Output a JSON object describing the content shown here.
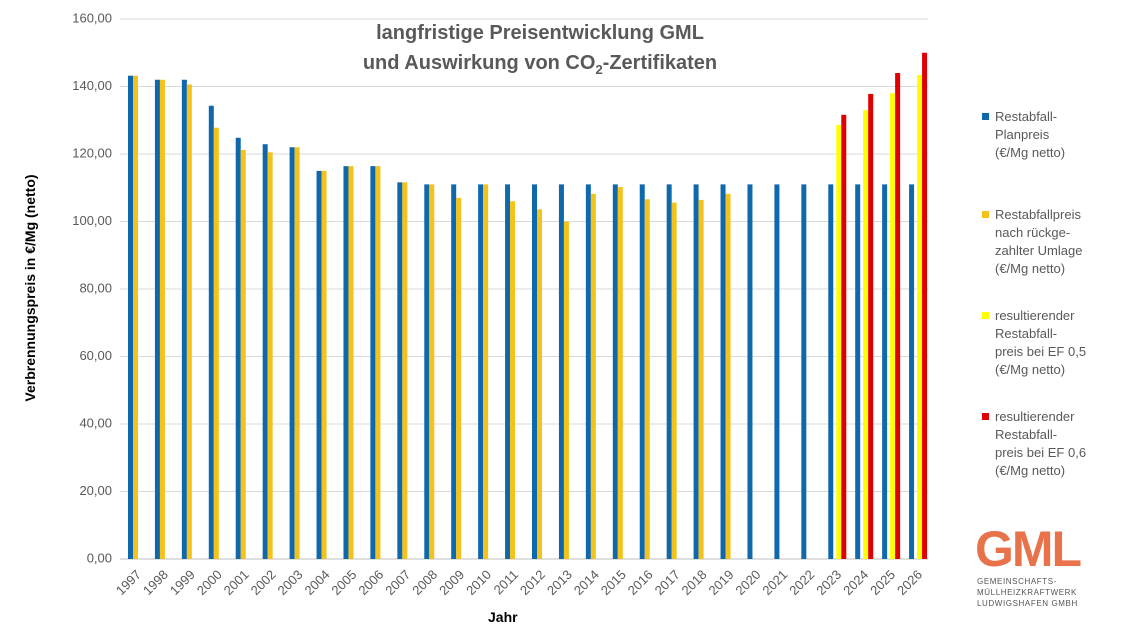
{
  "chart_data": {
    "type": "bar",
    "title": "langfristige Preisentwicklung GML",
    "subtitle_parts": [
      "und Auswirkung von CO",
      "2",
      "-Zertifikaten"
    ],
    "y_label": "Verbrennungspreis in €/Mg (netto)",
    "x_label": "Jahr",
    "categories": [
      "1997",
      "1998",
      "1999",
      "2000",
      "2001",
      "2002",
      "2003",
      "2004",
      "2005",
      "2006",
      "2007",
      "2008",
      "2009",
      "2010",
      "2011",
      "2012",
      "2013",
      "2014",
      "2015",
      "2016",
      "2017",
      "2018",
      "2019",
      "2020",
      "2021",
      "2022",
      "2023",
      "2024",
      "2025",
      "2026"
    ],
    "series": [
      {
        "name": "Restabfall-\nPlanpreis\n(€/Mg netto)",
        "color": "#1068ac",
        "values": [
          143.2,
          142,
          142,
          134.3,
          124.8,
          122.9,
          122,
          115,
          116.4,
          116.4,
          111.6,
          111,
          111,
          111,
          111,
          111,
          111,
          111,
          111,
          111,
          111,
          111,
          111,
          111,
          111,
          111,
          111,
          111,
          111,
          111
        ]
      },
      {
        "name": "Restabfallpreis\nnach rückge-\nzahlter Umlage\n(€/Mg netto)",
        "color": "#f5c21b",
        "values": [
          143.2,
          142,
          140.6,
          127.8,
          121.2,
          120.5,
          122,
          115,
          116.4,
          116.4,
          111.6,
          111,
          107,
          111,
          106,
          103.6,
          100,
          108.2,
          110.2,
          106.6,
          105.6,
          106.4,
          108.2,
          null,
          null,
          null,
          null,
          null,
          null,
          null
        ]
      },
      {
        "name": "resultierender\nRestabfall-\npreis bei EF 0,5\n(€/Mg netto)",
        "color": "#ffff00",
        "values": [
          null,
          null,
          null,
          null,
          null,
          null,
          null,
          null,
          null,
          null,
          null,
          null,
          null,
          null,
          null,
          null,
          null,
          null,
          null,
          null,
          null,
          null,
          null,
          null,
          null,
          null,
          128.6,
          133,
          138,
          143.4
        ]
      },
      {
        "name": "resultierender\nRestabfall-\npreis bei EF 0,6\n(€/Mg netto)",
        "color": "#e00000",
        "values": [
          null,
          null,
          null,
          null,
          null,
          null,
          null,
          null,
          null,
          null,
          null,
          null,
          null,
          null,
          null,
          null,
          null,
          null,
          null,
          null,
          null,
          null,
          null,
          null,
          null,
          null,
          131.6,
          137.8,
          144,
          150
        ]
      }
    ],
    "ylim": [
      0,
      160
    ],
    "yticks": [
      {
        "value": 0,
        "label": "0,00"
      },
      {
        "value": 20,
        "label": "20,00"
      },
      {
        "value": 40,
        "label": "40,00"
      },
      {
        "value": 60,
        "label": "60,00"
      },
      {
        "value": 80,
        "label": "80,00"
      },
      {
        "value": 100,
        "label": "100,00"
      },
      {
        "value": 120,
        "label": "120,00"
      },
      {
        "value": 140,
        "label": "140,00"
      },
      {
        "value": 160,
        "label": "160,00"
      }
    ],
    "grid": true,
    "legend": "right"
  },
  "logo": {
    "mark": "GML",
    "text": "GEMEINSCHAFTS-\nMÜLLHEIZKRAFTWERK\nLUDWIGSHAFEN GMBH"
  }
}
